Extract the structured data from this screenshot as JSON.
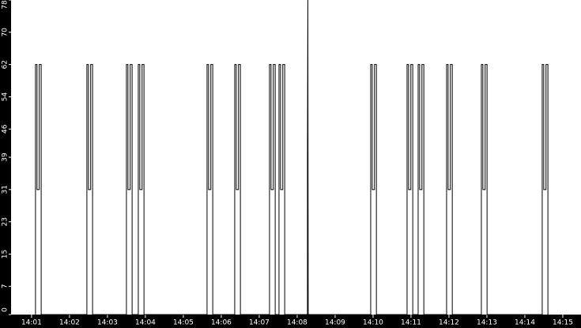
{
  "chart_data": {
    "type": "line",
    "color": "#000000",
    "x": [
      841.104,
      841.104,
      841.144,
      841.144,
      841.204,
      841.204,
      841.254,
      841.254,
      842.458,
      842.458,
      842.498,
      842.498,
      842.558,
      842.558,
      842.608,
      842.608,
      843.5,
      843.5,
      843.54,
      843.54,
      843.6,
      843.6,
      843.65,
      843.65,
      843.813,
      843.813,
      843.853,
      843.853,
      843.913,
      843.913,
      843.963,
      843.963,
      845.625,
      845.625,
      845.665,
      845.665,
      845.725,
      845.725,
      845.775,
      845.775,
      846.354,
      846.354,
      846.394,
      846.394,
      846.454,
      846.454,
      846.504,
      846.504,
      847.271,
      847.271,
      847.311,
      847.311,
      847.371,
      847.371,
      847.421,
      847.421,
      847.521,
      847.521,
      847.561,
      847.561,
      847.621,
      847.621,
      847.671,
      847.671,
      848.271,
      848.271,
      848.281,
      848.291,
      849.938,
      849.938,
      849.978,
      849.978,
      850.038,
      850.038,
      850.088,
      850.088,
      850.896,
      850.896,
      850.936,
      850.936,
      850.996,
      850.996,
      851.046,
      851.046,
      851.188,
      851.188,
      851.228,
      851.228,
      851.288,
      851.288,
      851.338,
      851.338,
      851.938,
      851.938,
      851.978,
      851.978,
      852.038,
      852.038,
      852.088,
      852.088,
      852.854,
      852.854,
      852.894,
      852.894,
      852.954,
      852.954,
      853.004,
      853.004,
      854.458,
      854.458,
      854.498,
      854.498,
      854.558,
      854.558,
      854.608,
      854.608
    ],
    "values": [
      0,
      62,
      62,
      31,
      31,
      62,
      62,
      0,
      0,
      62,
      62,
      31,
      31,
      62,
      62,
      0,
      0,
      62,
      62,
      31,
      31,
      62,
      62,
      0,
      0,
      62,
      62,
      31,
      31,
      62,
      62,
      0,
      0,
      62,
      62,
      31,
      31,
      62,
      62,
      0,
      0,
      62,
      62,
      31,
      31,
      62,
      62,
      0,
      0,
      62,
      62,
      31,
      31,
      62,
      62,
      0,
      0,
      62,
      62,
      31,
      31,
      62,
      62,
      0,
      0,
      39,
      78,
      0,
      0,
      62,
      62,
      31,
      31,
      62,
      62,
      0,
      0,
      62,
      62,
      31,
      31,
      62,
      62,
      0,
      0,
      62,
      62,
      31,
      31,
      62,
      62,
      0,
      0,
      62,
      62,
      31,
      31,
      62,
      62,
      0,
      0,
      62,
      62,
      31,
      31,
      62,
      62,
      0,
      0,
      62,
      62,
      31,
      31,
      62,
      62,
      0
    ],
    "xlim": [
      840.46,
      855.48
    ],
    "xticks": [
      {
        "value": 841,
        "label": "14:01"
      },
      {
        "value": 842,
        "label": "14:02"
      },
      {
        "value": 843,
        "label": "14:03"
      },
      {
        "value": 844,
        "label": "14:04"
      },
      {
        "value": 845,
        "label": "14:05"
      },
      {
        "value": 846,
        "label": "14:06"
      },
      {
        "value": 847,
        "label": "14:07"
      },
      {
        "value": 848,
        "label": "14:08"
      },
      {
        "value": 849,
        "label": "14:09"
      },
      {
        "value": 850,
        "label": "14:10"
      },
      {
        "value": 851,
        "label": "14:11"
      },
      {
        "value": 852,
        "label": "14:12"
      },
      {
        "value": 853,
        "label": "14:13"
      },
      {
        "value": 854,
        "label": "14:14"
      },
      {
        "value": 855,
        "label": "14:15"
      }
    ],
    "ylim": [
      0,
      78
    ],
    "yticks": [
      0,
      7,
      15,
      23,
      31,
      39,
      46,
      54,
      62,
      70,
      78
    ]
  }
}
